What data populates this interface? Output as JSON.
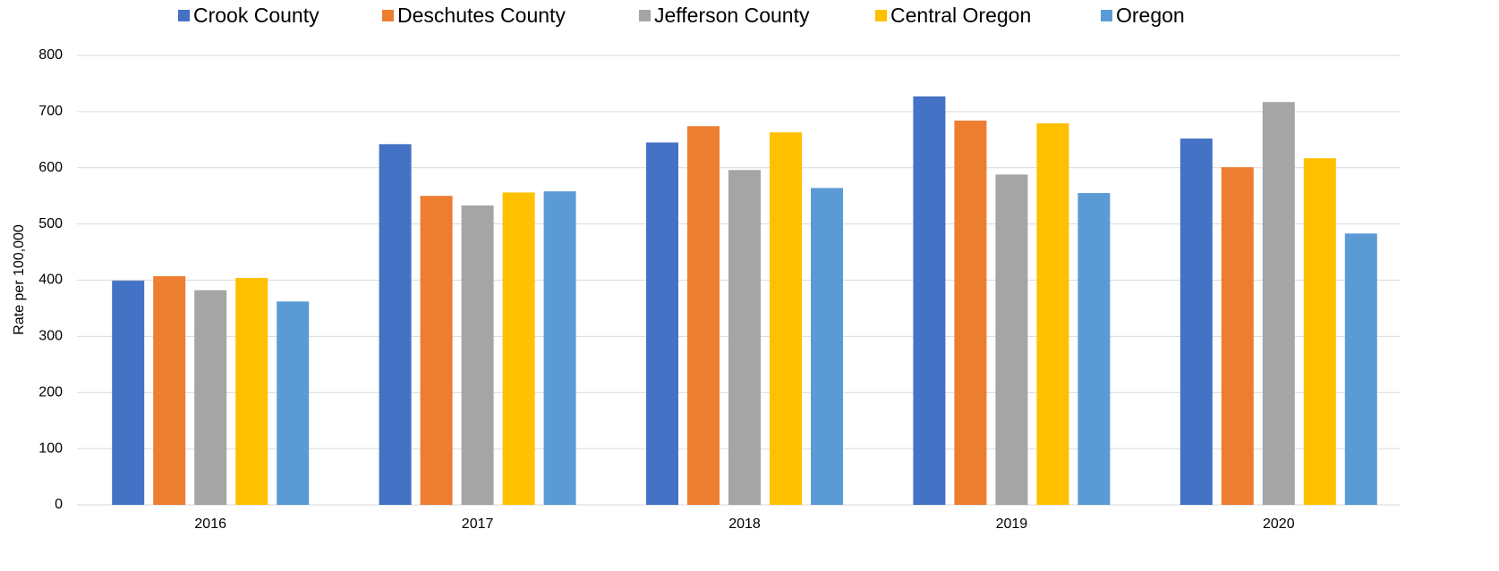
{
  "chart_data": {
    "type": "bar",
    "ylabel": "Rate per 100,000",
    "categories": [
      "2016",
      "2017",
      "2018",
      "2019",
      "2020"
    ],
    "series": [
      {
        "name": "Crook County",
        "color": "#4472c4",
        "values": [
          399,
          642,
          645,
          727,
          652
        ]
      },
      {
        "name": "Deschutes County",
        "color": "#ed7d31",
        "values": [
          407,
          550,
          674,
          684,
          601
        ]
      },
      {
        "name": "Jefferson County",
        "color": "#a5a5a5",
        "values": [
          382,
          533,
          596,
          588,
          717
        ]
      },
      {
        "name": "Central Oregon",
        "color": "#ffc000",
        "values": [
          404,
          556,
          663,
          679,
          617
        ]
      },
      {
        "name": "Oregon",
        "color": "#5b9bd5",
        "values": [
          362,
          558,
          564,
          555,
          483
        ]
      }
    ],
    "ylim": [
      0,
      800
    ],
    "yticks": [
      0,
      100,
      200,
      300,
      400,
      500,
      600,
      700,
      800
    ],
    "grid": true,
    "legend": "top"
  }
}
